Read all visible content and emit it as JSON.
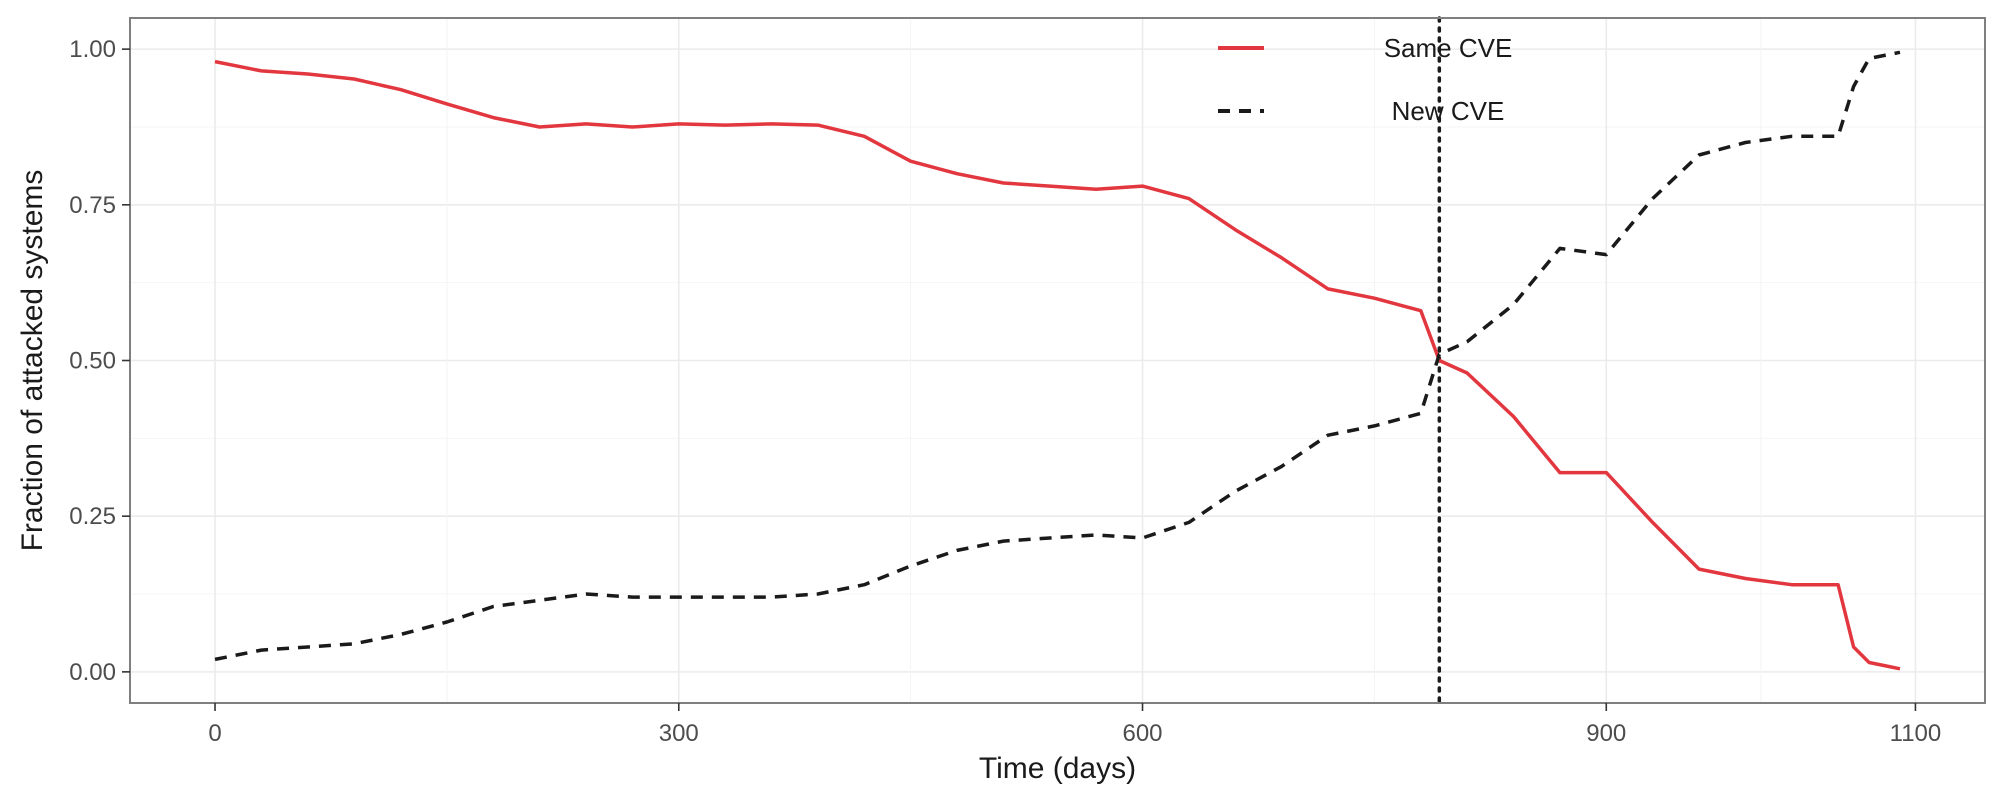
{
  "chart_data": {
    "type": "line",
    "title": "",
    "xlabel": "Time (days)",
    "ylabel": "Fraction of attacked systems",
    "xlim": [
      -55,
      1145
    ],
    "ylim": [
      -0.05,
      1.05
    ],
    "x_ticks": [
      0,
      300,
      600,
      900,
      1100
    ],
    "y_ticks": [
      0.0,
      0.25,
      0.5,
      0.75,
      1.0
    ],
    "y_tick_labels": [
      "0.00",
      "0.25",
      "0.50",
      "0.75",
      "1.00"
    ],
    "grid": true,
    "legend_position": "top-center",
    "vline": {
      "x": 792,
      "style": "dotted",
      "color": "#1a1a1a"
    },
    "series": [
      {
        "name": "Same CVE",
        "color": "#e3373f",
        "dash": "solid",
        "x": [
          0,
          30,
          60,
          90,
          120,
          150,
          180,
          210,
          240,
          270,
          300,
          330,
          360,
          390,
          420,
          450,
          480,
          510,
          540,
          570,
          600,
          630,
          660,
          690,
          720,
          750,
          780,
          792,
          810,
          840,
          870,
          900,
          930,
          960,
          990,
          1020,
          1050,
          1060,
          1070,
          1080,
          1090
        ],
        "y": [
          0.98,
          0.965,
          0.96,
          0.952,
          0.935,
          0.912,
          0.89,
          0.875,
          0.88,
          0.875,
          0.88,
          0.878,
          0.88,
          0.878,
          0.86,
          0.82,
          0.8,
          0.785,
          0.78,
          0.775,
          0.78,
          0.76,
          0.71,
          0.665,
          0.615,
          0.6,
          0.58,
          0.5,
          0.48,
          0.41,
          0.32,
          0.32,
          0.24,
          0.165,
          0.15,
          0.14,
          0.14,
          0.04,
          0.015,
          0.01,
          0.005
        ]
      },
      {
        "name": "New CVE",
        "color": "#1a1a1a",
        "dash": "dashed",
        "x": [
          0,
          30,
          60,
          90,
          120,
          150,
          180,
          210,
          240,
          270,
          300,
          330,
          360,
          390,
          420,
          450,
          480,
          510,
          540,
          570,
          600,
          630,
          660,
          690,
          720,
          750,
          780,
          792,
          810,
          840,
          870,
          900,
          930,
          960,
          990,
          1020,
          1050,
          1060,
          1070,
          1080,
          1090
        ],
        "y": [
          0.02,
          0.035,
          0.04,
          0.045,
          0.06,
          0.08,
          0.105,
          0.115,
          0.125,
          0.12,
          0.12,
          0.12,
          0.12,
          0.125,
          0.14,
          0.17,
          0.195,
          0.21,
          0.215,
          0.22,
          0.215,
          0.24,
          0.29,
          0.33,
          0.38,
          0.395,
          0.415,
          0.51,
          0.53,
          0.59,
          0.68,
          0.67,
          0.76,
          0.83,
          0.85,
          0.86,
          0.86,
          0.94,
          0.985,
          0.99,
          0.995
        ]
      }
    ]
  }
}
